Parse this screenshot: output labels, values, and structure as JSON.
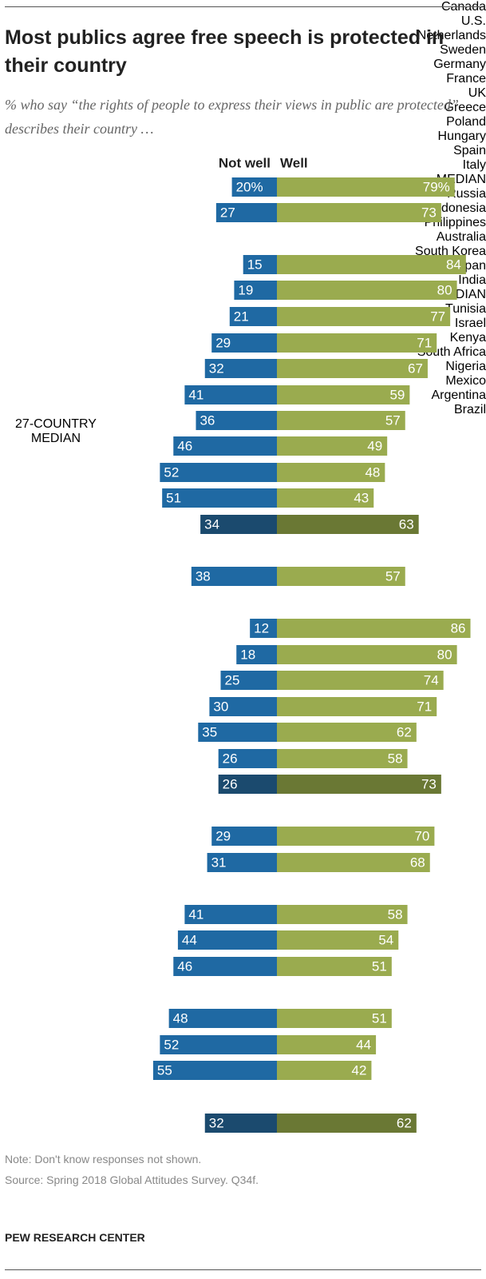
{
  "chart_data": {
    "type": "diverging-bar",
    "title": "Most publics agree free speech is protected in their country",
    "subtitle": "% who say “the rights of people to express their views in public are protected” describes their country …",
    "categories": [
      "Canada",
      "U.S.",
      "Netherlands",
      "Sweden",
      "Germany",
      "France",
      "UK",
      "Greece",
      "Poland",
      "Hungary",
      "Spain",
      "Italy",
      "MEDIAN",
      "Russia",
      "Indonesia",
      "Philippines",
      "Australia",
      "South Korea",
      "Japan",
      "India",
      "MEDIAN",
      "Tunisia",
      "Israel",
      "Kenya",
      "South Africa",
      "Nigeria",
      "Mexico",
      "Argentina",
      "Brazil",
      "27-COUNTRY MEDIAN"
    ],
    "series": [
      {
        "name": "Not well",
        "color": "#1f69a3",
        "highlight_color": "#1b4a6e",
        "values": [
          20,
          27,
          15,
          19,
          21,
          29,
          32,
          41,
          36,
          46,
          52,
          51,
          34,
          38,
          12,
          18,
          25,
          30,
          35,
          26,
          26,
          29,
          31,
          41,
          44,
          46,
          48,
          52,
          55,
          32
        ],
        "value_labels": [
          "20%",
          null,
          null,
          null,
          null,
          null,
          null,
          null,
          null,
          null,
          null,
          null,
          null,
          null,
          null,
          null,
          null,
          null,
          null,
          null,
          null,
          null,
          null,
          null,
          null,
          null,
          null,
          null,
          null,
          null
        ]
      },
      {
        "name": "Well",
        "color": "#9aab4f",
        "highlight_color": "#6a7834",
        "values": [
          79,
          73,
          84,
          80,
          77,
          71,
          67,
          59,
          57,
          49,
          48,
          43,
          63,
          57,
          86,
          80,
          74,
          71,
          62,
          58,
          73,
          70,
          68,
          58,
          54,
          51,
          51,
          44,
          42,
          62
        ],
        "value_labels": [
          "79%",
          null,
          null,
          null,
          null,
          null,
          null,
          null,
          null,
          null,
          null,
          null,
          null,
          null,
          null,
          null,
          null,
          null,
          null,
          null,
          null,
          null,
          null,
          null,
          null,
          null,
          null,
          null,
          null,
          null
        ]
      }
    ],
    "note": "Note: Don't know responses not shown.",
    "source": "Source: Spring 2018 Global Attitudes Survey. Q34f.",
    "brand": "PEW RESEARCH CENTER"
  }
}
